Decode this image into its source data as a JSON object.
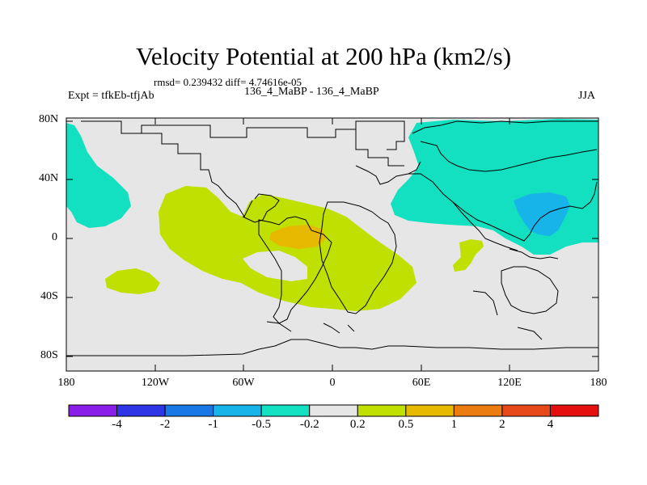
{
  "title": "Velocity Potential at 200 hPa (km2/s)",
  "stats": "rmsd= 0.239432 diff= 4.74616e-05",
  "left_label": "Expt = tfkEb-tfjAb",
  "center_label": "136_4_MaBP - 136_4_MaBP",
  "right_label": "JJA",
  "lat_ticks": [
    "80N",
    "40N",
    "0",
    "40S",
    "80S"
  ],
  "lon_ticks": [
    "180",
    "120W",
    "60W",
    "0",
    "60E",
    "120E",
    "180"
  ],
  "colorbar": {
    "labels": [
      "-4",
      "-2",
      "-1",
      "-0.5",
      "-0.2",
      "0.2",
      "0.5",
      "1",
      "2",
      "4"
    ],
    "colors": [
      "#8a1ee8",
      "#2e35e6",
      "#1a78e6",
      "#16b4e8",
      "#12e0c0",
      "#e6e6e6",
      "#bfe000",
      "#e6b800",
      "#ea7c10",
      "#e64818",
      "#e60f0f"
    ]
  },
  "map_colors": {
    "background": "#e6e6e6",
    "teal": "#12e0c0",
    "cyan": "#16b4e8",
    "lime": "#bfe000",
    "orange": "#e6b800",
    "coastline": "#000000"
  }
}
